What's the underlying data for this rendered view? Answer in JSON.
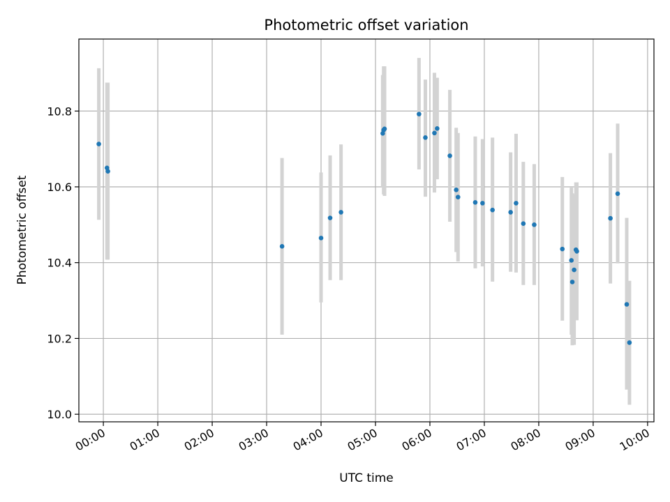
{
  "chart_data": {
    "type": "scatter",
    "title": "Photometric offset variation",
    "xlabel": "UTC time",
    "ylabel": "Photometric offset",
    "x_ticks": [
      "00:00",
      "01:00",
      "02:00",
      "03:00",
      "04:00",
      "05:00",
      "06:00",
      "07:00",
      "08:00",
      "09:00",
      "10:00"
    ],
    "y_ticks": [
      "10.0",
      "10.2",
      "10.4",
      "10.6",
      "10.8"
    ],
    "xlim": [
      "-00:27",
      "10:07"
    ],
    "ylim": [
      9.98,
      10.99
    ],
    "grid": true,
    "marker_color": "#1f77b4",
    "errorbar_color": "#d3d3d3",
    "points": [
      {
        "time": "23:55",
        "y": 10.713,
        "low": 10.513,
        "high": 10.913
      },
      {
        "time": "00:04",
        "y": 10.65,
        "low": 10.408,
        "high": 10.875
      },
      {
        "time": "00:05",
        "y": 10.641,
        "low": 10.408,
        "high": 10.875
      },
      {
        "time": "03:17",
        "y": 10.443,
        "low": 10.21,
        "high": 10.676
      },
      {
        "time": "04:00",
        "y": 10.465,
        "low": 10.295,
        "high": 10.638
      },
      {
        "time": "04:10",
        "y": 10.518,
        "low": 10.354,
        "high": 10.683
      },
      {
        "time": "04:22",
        "y": 10.533,
        "low": 10.354,
        "high": 10.712
      },
      {
        "time": "05:08",
        "y": 10.741,
        "low": 10.6,
        "high": 10.895
      },
      {
        "time": "05:09",
        "y": 10.75,
        "low": 10.58,
        "high": 10.918
      },
      {
        "time": "05:10",
        "y": 10.753,
        "low": 10.576,
        "high": 10.918
      },
      {
        "time": "05:48",
        "y": 10.792,
        "low": 10.646,
        "high": 10.94
      },
      {
        "time": "05:55",
        "y": 10.73,
        "low": 10.574,
        "high": 10.883
      },
      {
        "time": "06:05",
        "y": 10.742,
        "low": 10.585,
        "high": 10.901
      },
      {
        "time": "06:08",
        "y": 10.754,
        "low": 10.62,
        "high": 10.888
      },
      {
        "time": "06:22",
        "y": 10.682,
        "low": 10.508,
        "high": 10.856
      },
      {
        "time": "06:29",
        "y": 10.592,
        "low": 10.428,
        "high": 10.756
      },
      {
        "time": "06:31",
        "y": 10.573,
        "low": 10.403,
        "high": 10.742
      },
      {
        "time": "06:50",
        "y": 10.559,
        "low": 10.385,
        "high": 10.733
      },
      {
        "time": "06:58",
        "y": 10.557,
        "low": 10.39,
        "high": 10.726
      },
      {
        "time": "07:09",
        "y": 10.539,
        "low": 10.35,
        "high": 10.73
      },
      {
        "time": "07:29",
        "y": 10.533,
        "low": 10.376,
        "high": 10.691
      },
      {
        "time": "07:35",
        "y": 10.557,
        "low": 10.374,
        "high": 10.74
      },
      {
        "time": "07:43",
        "y": 10.503,
        "low": 10.341,
        "high": 10.666
      },
      {
        "time": "07:55",
        "y": 10.5,
        "low": 10.341,
        "high": 10.66
      },
      {
        "time": "08:26",
        "y": 10.436,
        "low": 10.247,
        "high": 10.626
      },
      {
        "time": "08:36",
        "y": 10.406,
        "low": 10.21,
        "high": 10.598
      },
      {
        "time": "08:37",
        "y": 10.349,
        "low": 10.182,
        "high": 10.583
      },
      {
        "time": "08:39",
        "y": 10.381,
        "low": 10.183,
        "high": 10.58
      },
      {
        "time": "08:41",
        "y": 10.434,
        "low": 10.25,
        "high": 10.612
      },
      {
        "time": "08:42",
        "y": 10.43,
        "low": 10.248,
        "high": 10.612
      },
      {
        "time": "09:19",
        "y": 10.517,
        "low": 10.345,
        "high": 10.689
      },
      {
        "time": "09:27",
        "y": 10.582,
        "low": 10.398,
        "high": 10.767
      },
      {
        "time": "09:37",
        "y": 10.29,
        "low": 10.065,
        "high": 10.518
      },
      {
        "time": "09:40",
        "y": 10.189,
        "low": 10.025,
        "high": 10.352
      }
    ]
  }
}
